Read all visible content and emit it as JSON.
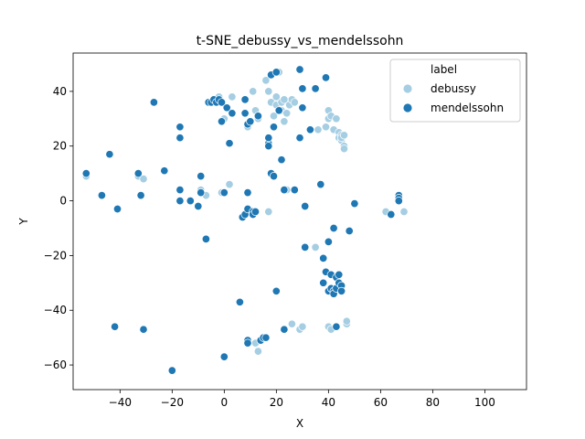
{
  "chart_data": {
    "type": "scatter",
    "title": "t-SNE_debussy_vs_mendelssohn",
    "xlabel": "X",
    "ylabel": "Y",
    "xlim": [
      -58,
      116
    ],
    "ylim": [
      -69,
      54
    ],
    "xticks": [
      -40,
      -20,
      0,
      20,
      40,
      60,
      80,
      100
    ],
    "yticks": [
      -60,
      -40,
      -20,
      0,
      20,
      40
    ],
    "grid": false,
    "legend": {
      "title": "label",
      "placement": "top-right"
    },
    "series": [
      {
        "name": "debussy",
        "color": "#a6cee3",
        "points": [
          [
            -53,
            9
          ],
          [
            -33,
            9
          ],
          [
            -31,
            8
          ],
          [
            -9,
            4
          ],
          [
            -7,
            2
          ],
          [
            -1,
            3
          ],
          [
            2,
            6
          ],
          [
            -4,
            36
          ],
          [
            -3,
            37
          ],
          [
            -2,
            38
          ],
          [
            0,
            30
          ],
          [
            3,
            38
          ],
          [
            8,
            32
          ],
          [
            9,
            27
          ],
          [
            11,
            40
          ],
          [
            12,
            33
          ],
          [
            13,
            30
          ],
          [
            16,
            44
          ],
          [
            17,
            -4
          ],
          [
            17,
            40
          ],
          [
            18,
            36
          ],
          [
            19,
            31
          ],
          [
            20,
            35
          ],
          [
            20,
            38
          ],
          [
            21,
            47
          ],
          [
            22,
            33
          ],
          [
            22,
            36
          ],
          [
            23,
            29
          ],
          [
            23,
            37
          ],
          [
            24,
            32
          ],
          [
            25,
            35
          ],
          [
            26,
            37
          ],
          [
            27,
            36
          ],
          [
            23,
            4
          ],
          [
            24,
            4
          ],
          [
            36,
            26
          ],
          [
            39,
            27
          ],
          [
            40,
            30
          ],
          [
            40,
            33
          ],
          [
            41,
            31
          ],
          [
            42,
            26
          ],
          [
            43,
            30
          ],
          [
            44,
            25
          ],
          [
            44,
            23
          ],
          [
            45,
            22
          ],
          [
            45,
            24
          ],
          [
            46,
            20
          ],
          [
            46,
            19
          ],
          [
            45,
            23
          ],
          [
            46,
            24
          ],
          [
            35,
            -17
          ],
          [
            40,
            -46
          ],
          [
            41,
            -47
          ],
          [
            47,
            -45
          ],
          [
            47,
            -44
          ],
          [
            26,
            -45
          ],
          [
            29,
            -47
          ],
          [
            30,
            -46
          ],
          [
            12,
            -52
          ],
          [
            13,
            -55
          ],
          [
            62,
            -4
          ],
          [
            69,
            -4
          ]
        ]
      },
      {
        "name": "mendelssohn",
        "color": "#1f78b4",
        "points": [
          [
            -53,
            10
          ],
          [
            -47,
            2
          ],
          [
            -44,
            17
          ],
          [
            -41,
            -3
          ],
          [
            -42,
            -46
          ],
          [
            -33,
            10
          ],
          [
            -32,
            2
          ],
          [
            -31,
            -47
          ],
          [
            -27,
            36
          ],
          [
            -23,
            11
          ],
          [
            -17,
            27
          ],
          [
            -17,
            23
          ],
          [
            -17,
            4
          ],
          [
            -17,
            0
          ],
          [
            -13,
            0
          ],
          [
            -10,
            -2
          ],
          [
            -9,
            3
          ],
          [
            -9,
            9
          ],
          [
            -7,
            -14
          ],
          [
            -6,
            36
          ],
          [
            -5,
            36
          ],
          [
            -4,
            37
          ],
          [
            -3,
            36
          ],
          [
            -2,
            37
          ],
          [
            -1,
            36
          ],
          [
            -1,
            29
          ],
          [
            0,
            3
          ],
          [
            1,
            34
          ],
          [
            2,
            21
          ],
          [
            3,
            32
          ],
          [
            6,
            -37
          ],
          [
            7,
            -6
          ],
          [
            8,
            37
          ],
          [
            8,
            32
          ],
          [
            8,
            -5
          ],
          [
            9,
            28
          ],
          [
            9,
            -3
          ],
          [
            9,
            3
          ],
          [
            9,
            -51
          ],
          [
            9,
            -52
          ],
          [
            10,
            29
          ],
          [
            11,
            -4
          ],
          [
            11,
            -5
          ],
          [
            12,
            -4
          ],
          [
            13,
            31
          ],
          [
            14,
            -51
          ],
          [
            15,
            -50
          ],
          [
            16,
            -50
          ],
          [
            17,
            21
          ],
          [
            17,
            20
          ],
          [
            17,
            23
          ],
          [
            18,
            46
          ],
          [
            18,
            10
          ],
          [
            19,
            27
          ],
          [
            19,
            9
          ],
          [
            20,
            -33
          ],
          [
            20,
            47
          ],
          [
            21,
            33
          ],
          [
            22,
            15
          ],
          [
            23,
            4
          ],
          [
            23,
            -47
          ],
          [
            27,
            4
          ],
          [
            29,
            48
          ],
          [
            30,
            41
          ],
          [
            29,
            23
          ],
          [
            30,
            34
          ],
          [
            31,
            -2
          ],
          [
            31,
            -17
          ],
          [
            33,
            26
          ],
          [
            35,
            41
          ],
          [
            37,
            6
          ],
          [
            38,
            -21
          ],
          [
            38,
            -30
          ],
          [
            39,
            45
          ],
          [
            39,
            -26
          ],
          [
            40,
            -15
          ],
          [
            40,
            -33
          ],
          [
            41,
            -32
          ],
          [
            41,
            -27
          ],
          [
            42,
            -33
          ],
          [
            42,
            -10
          ],
          [
            42,
            -34
          ],
          [
            43,
            -32
          ],
          [
            43,
            -28
          ],
          [
            44,
            -30
          ],
          [
            44,
            -27
          ],
          [
            43,
            -46
          ],
          [
            45,
            -31
          ],
          [
            45,
            -33
          ],
          [
            48,
            -11
          ],
          [
            50,
            -1
          ],
          [
            64,
            -5
          ],
          [
            67,
            2
          ],
          [
            67,
            1
          ],
          [
            67,
            0
          ],
          [
            -20,
            -62
          ],
          [
            0,
            -57
          ]
        ]
      }
    ]
  }
}
